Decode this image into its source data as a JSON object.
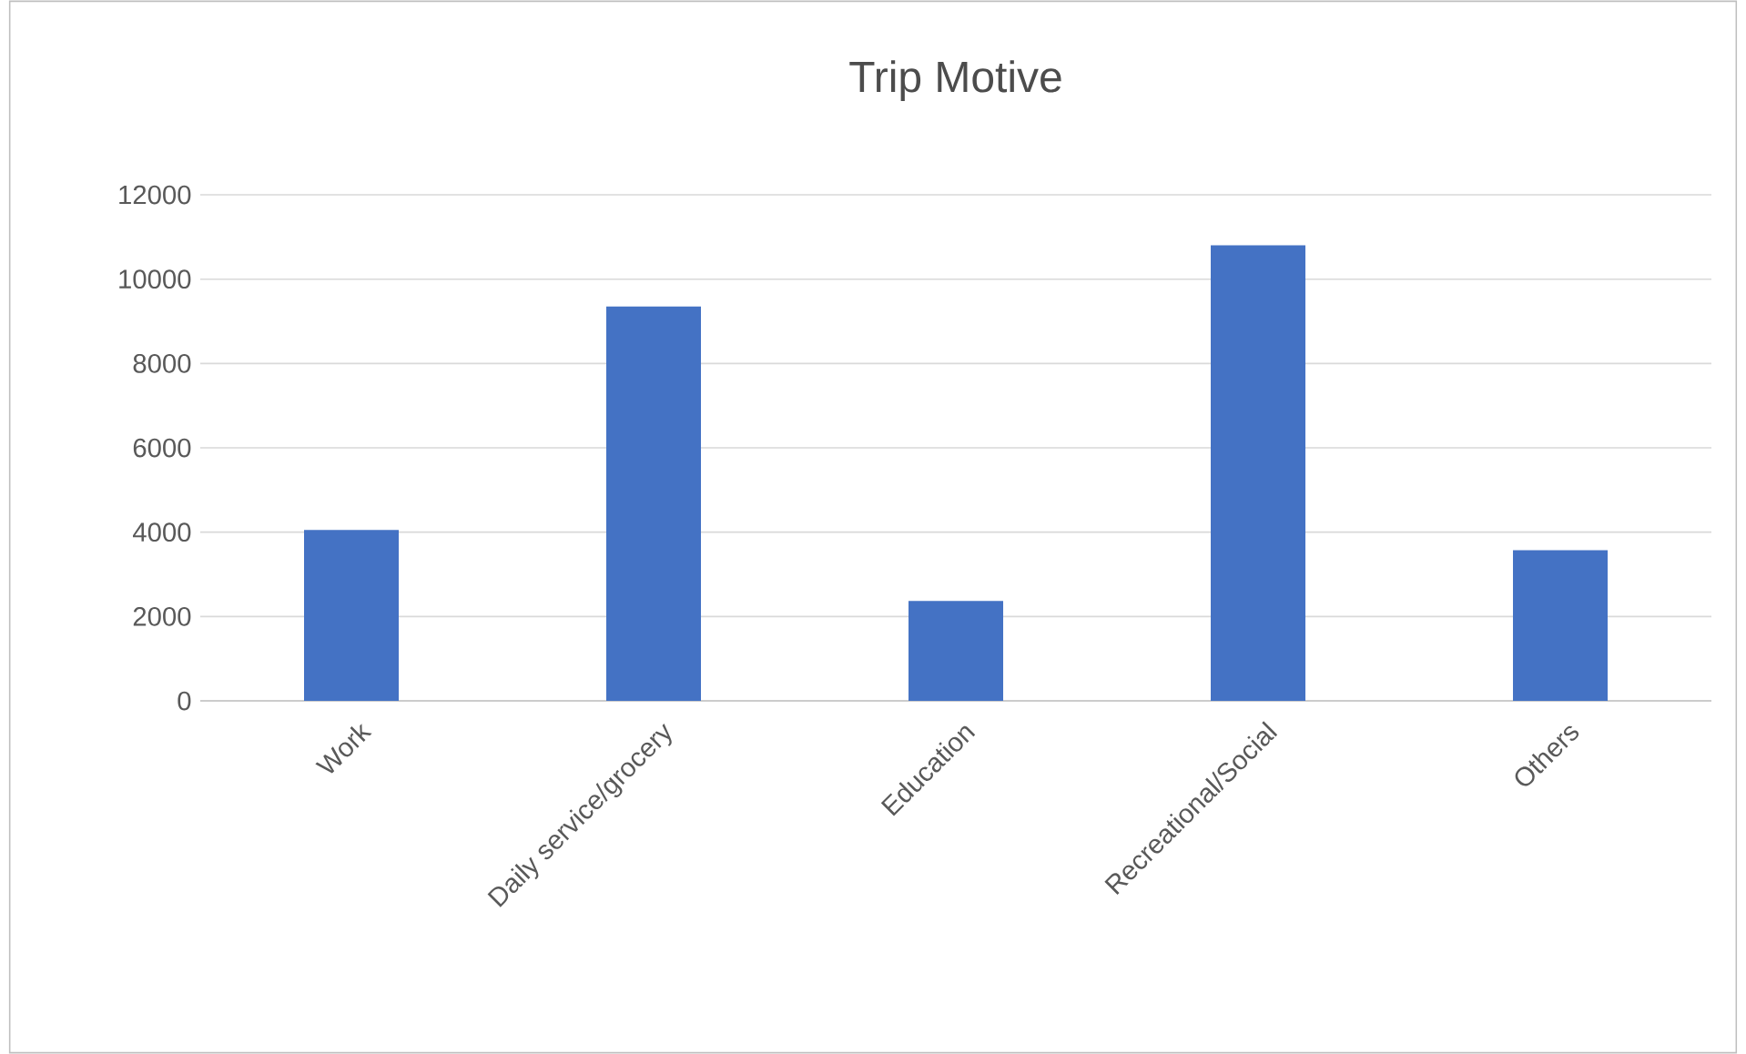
{
  "chart_data": {
    "type": "bar",
    "title": "Trip Motive",
    "categories": [
      "Work",
      "Daily service/grocery",
      "Education",
      "Recreational/Social",
      "Others"
    ],
    "values": [
      4050,
      9350,
      2370,
      10800,
      3570
    ],
    "color": "#4472c4",
    "ylim": [
      0,
      12000
    ],
    "yticks": [
      0,
      2000,
      4000,
      6000,
      8000,
      10000,
      12000
    ],
    "grid": "y"
  }
}
